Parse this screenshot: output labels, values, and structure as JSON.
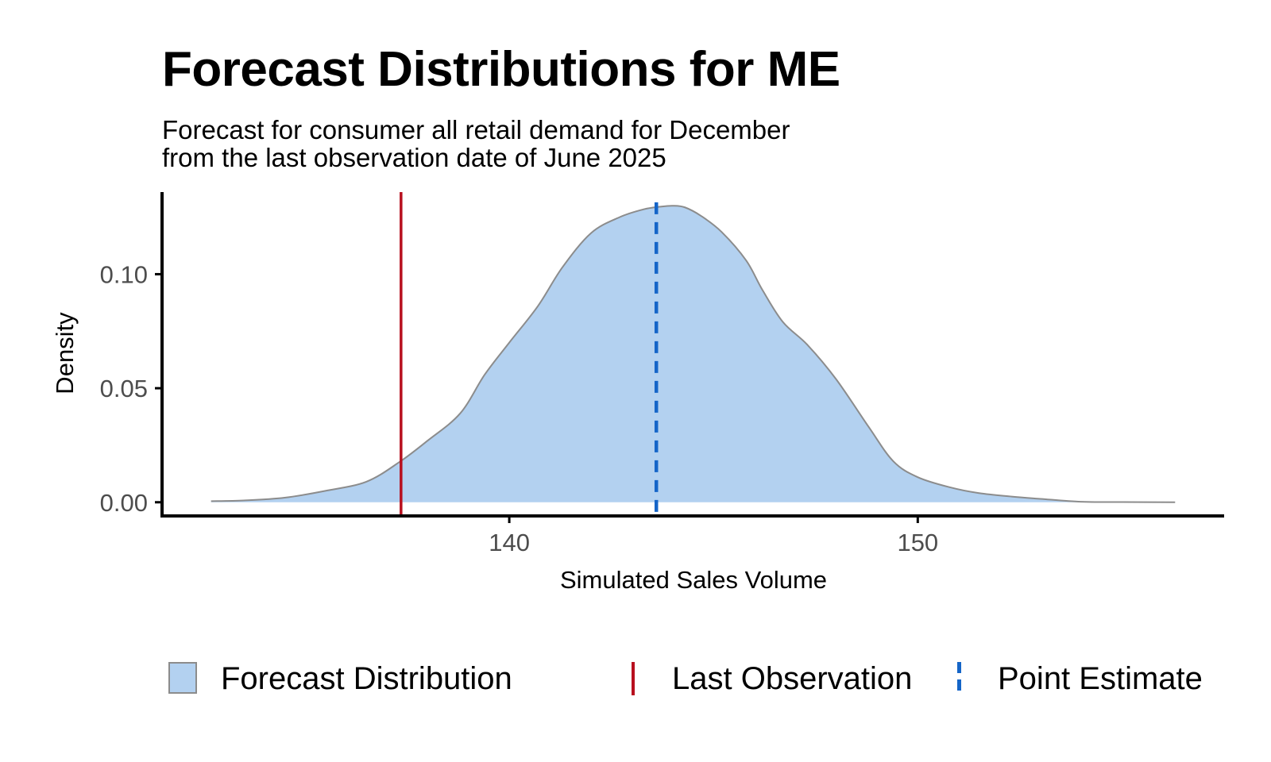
{
  "chart_data": {
    "type": "area",
    "title": "Forecast Distributions for ME",
    "subtitle": [
      "Forecast for consumer all retail demand for December",
      "from the last observation date of June 2025"
    ],
    "xlabel": "Simulated Sales Volume",
    "ylabel": "Density",
    "xlim": [
      131.5,
      157.5
    ],
    "ylim": [
      -0.006,
      0.136
    ],
    "x_ticks": [
      140,
      150
    ],
    "x_tick_labels": [
      "140",
      "150"
    ],
    "y_ticks": [
      0.0,
      0.05,
      0.1
    ],
    "y_tick_labels": [
      "0.00",
      "0.05",
      "0.10"
    ],
    "grid": false,
    "legend_position": "bottom",
    "series": [
      {
        "name": "Forecast Distribution",
        "kind": "density",
        "fill": "#b3d1f0",
        "stroke": "#8c8c8c",
        "x": [
          132.7,
          133.5,
          134.5,
          135.5,
          136.5,
          137.3,
          138.0,
          138.8,
          139.4,
          140.0,
          140.7,
          141.3,
          142.0,
          142.7,
          143.3,
          143.7,
          144.0,
          144.3,
          144.7,
          145.2,
          145.8,
          146.2,
          146.7,
          147.3,
          148.0,
          148.8,
          149.4,
          150.0,
          150.8,
          151.5,
          152.3,
          153.0,
          154.0,
          155.0,
          156.3
        ],
        "y": [
          0.0005,
          0.0008,
          0.002,
          0.005,
          0.009,
          0.0175,
          0.027,
          0.039,
          0.056,
          0.07,
          0.086,
          0.103,
          0.118,
          0.125,
          0.1285,
          0.1296,
          0.13,
          0.1293,
          0.1255,
          0.1185,
          0.106,
          0.093,
          0.079,
          0.069,
          0.054,
          0.033,
          0.018,
          0.011,
          0.0065,
          0.004,
          0.0025,
          0.0015,
          0.0002,
          0.0001,
          0.0
        ]
      },
      {
        "name": "Last Observation",
        "kind": "vline",
        "x": 137.35,
        "color": "#b8101f"
      },
      {
        "name": "Point Estimate",
        "kind": "vline-dashed",
        "x": 143.6,
        "color": "#1565c8"
      }
    ]
  },
  "legend": {
    "forecast": "Forecast Distribution",
    "last_obs": "Last Observation",
    "point_est": "Point Estimate"
  }
}
